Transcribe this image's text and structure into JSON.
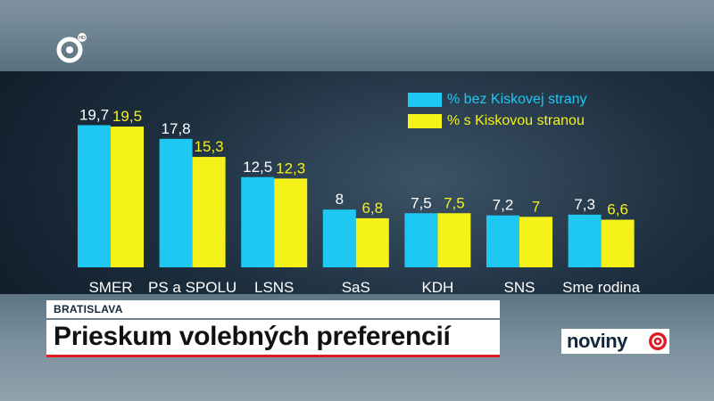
{
  "chart_data": {
    "type": "bar",
    "categories": [
      "SMER",
      "PS a SPOLU",
      "LSNS",
      "SaS",
      "KDH",
      "SNS",
      "Sme rodina"
    ],
    "series": [
      {
        "name": "% bez Kiskovej strany",
        "values": [
          19.7,
          17.8,
          12.5,
          8,
          7.5,
          7.2,
          7.3
        ],
        "labels": [
          "19,7",
          "17,8",
          "12,5",
          "8",
          "7,5",
          "7,2",
          "7,3"
        ],
        "color": "#1ec8f2"
      },
      {
        "name": "% s Kiskovou stranou",
        "values": [
          19.5,
          15.3,
          12.3,
          6.8,
          7.5,
          7,
          6.6
        ],
        "labels": [
          "19,5",
          "15,3",
          "12,3",
          "6,8",
          "7,5",
          "7",
          "6,6"
        ],
        "color": "#f5f21a"
      }
    ],
    "ylim": [
      0,
      20
    ],
    "grid": false,
    "legend_position": "top-right"
  },
  "colors": {
    "category_text": "#ffffff",
    "series1_label": "#ffffff",
    "series2_label": "#f5f21a",
    "accent_red": "#e01b24"
  },
  "lower_third": {
    "location": "BRATISLAVA",
    "headline": "Prieskum volebných preferencií"
  },
  "brand": {
    "name": "noviny",
    "icon": "markiza-eye-icon",
    "channel_logo": "markiza-channel-logo-icon"
  }
}
